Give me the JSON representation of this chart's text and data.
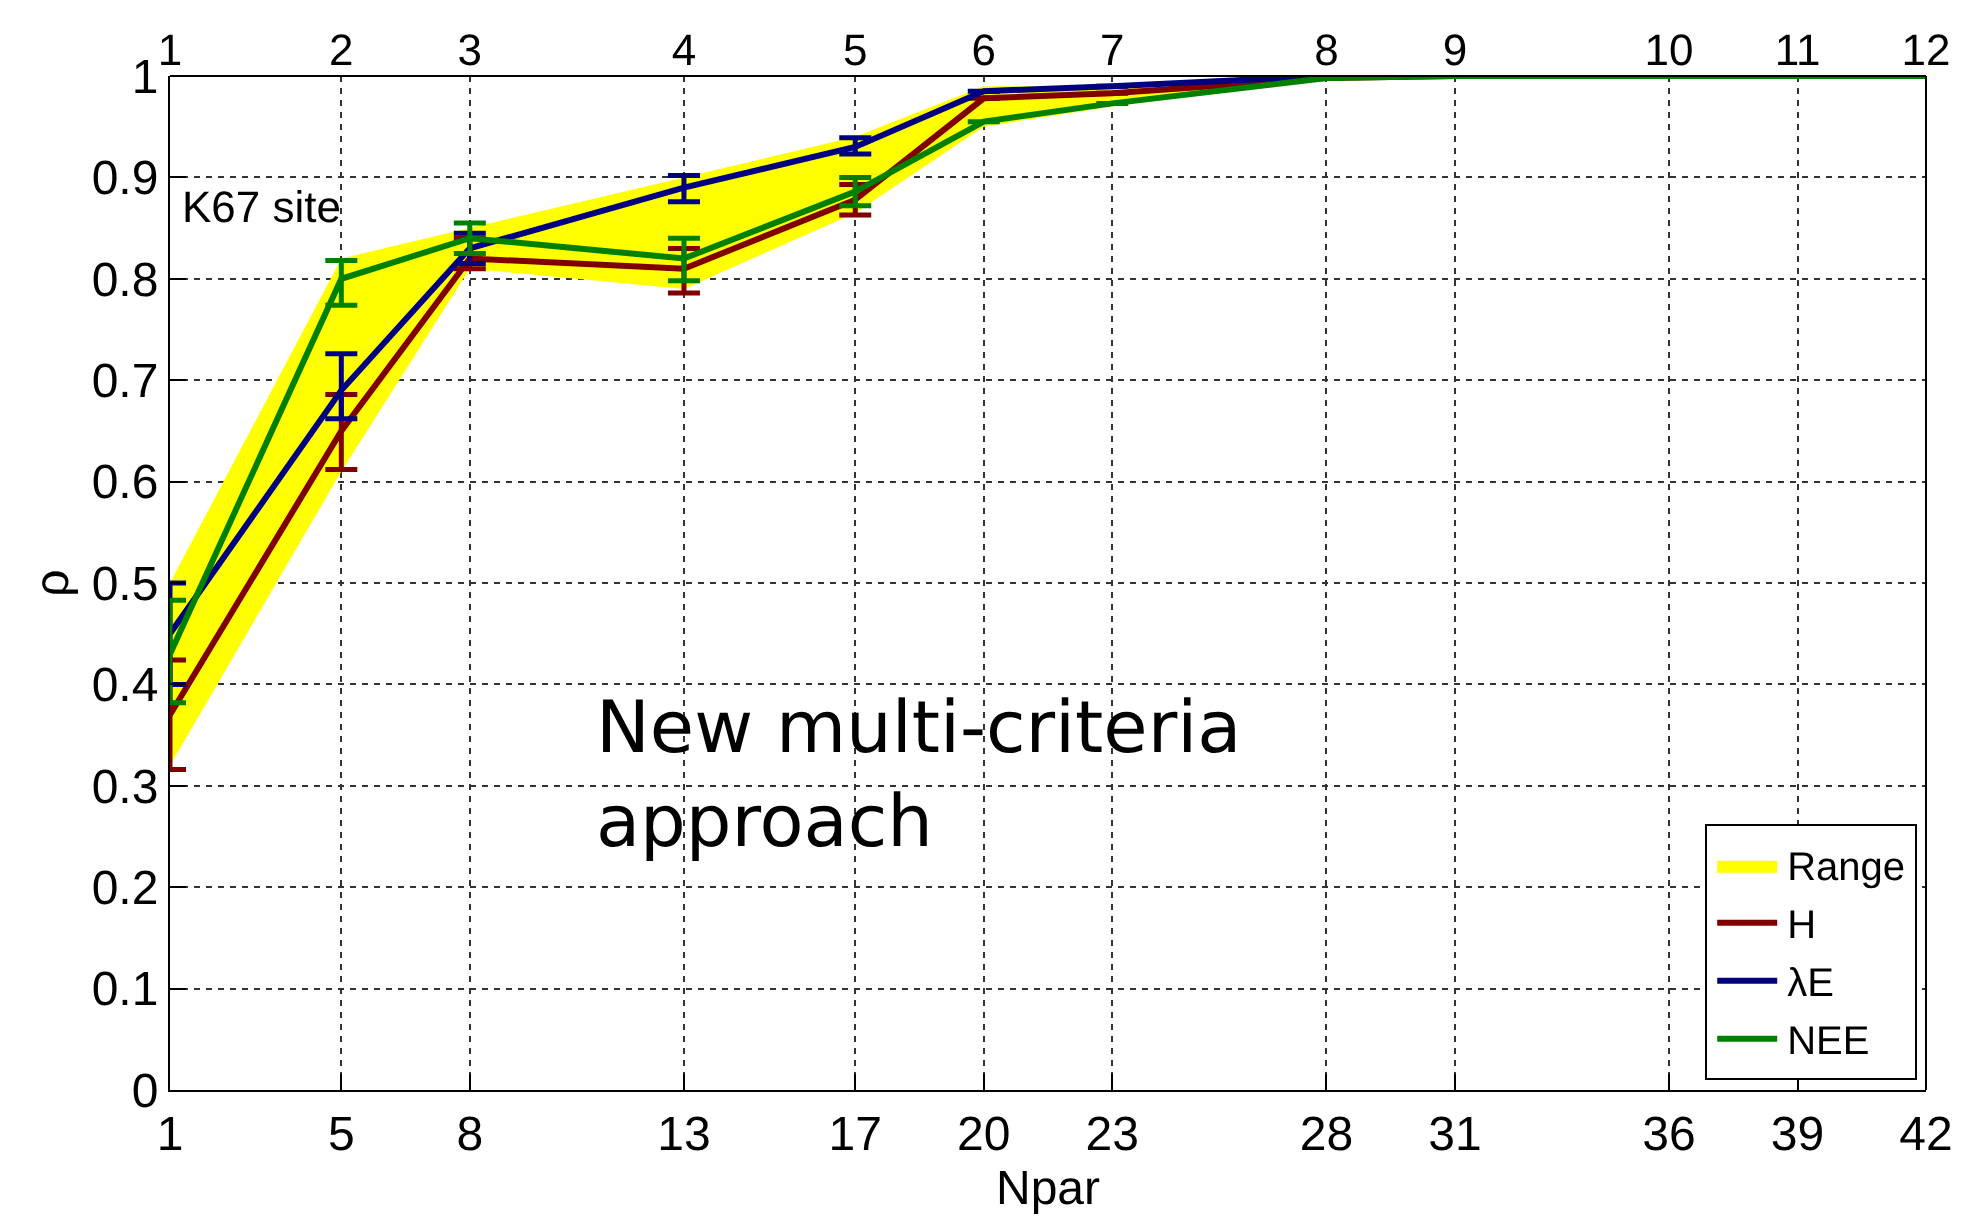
{
  "chart_data": {
    "type": "line",
    "x": [
      1,
      5,
      8,
      13,
      17,
      20,
      23,
      28,
      31,
      36,
      39,
      42
    ],
    "xlabel": "Npar",
    "ylabel": "ρ",
    "xlim": [
      1,
      42
    ],
    "xticks": [
      1,
      5,
      8,
      13,
      17,
      20,
      23,
      28,
      31,
      36,
      39,
      42
    ],
    "ylim": [
      0,
      1
    ],
    "yticks": [
      0,
      0.1,
      0.2,
      0.3,
      0.4,
      0.5,
      0.6,
      0.7,
      0.8,
      0.9,
      1
    ],
    "series": [
      {
        "name": "Range",
        "type": "area",
        "color": "#ffff00",
        "values": [
          null,
          null,
          null,
          null,
          null,
          null,
          null,
          null,
          null,
          null,
          null,
          null
        ],
        "upper": [
          0.5,
          0.82,
          0.85,
          0.9,
          0.94,
          0.99,
          0.99,
          1,
          1,
          1,
          1,
          1
        ],
        "lower": [
          0.32,
          0.61,
          0.81,
          0.79,
          0.865,
          0.95,
          0.97,
          0.998,
          1,
          1,
          1,
          1
        ]
      },
      {
        "name": "H",
        "color": "#800000",
        "values": [
          0.37,
          0.65,
          0.82,
          0.81,
          0.878,
          0.978,
          0.983,
          0.998,
          1,
          null,
          null,
          null
        ],
        "errors": [
          [
            0.316,
            0.424
          ],
          [
            0.612,
            0.686
          ],
          [
            0.81,
            0.84
          ],
          [
            0.786,
            0.83
          ],
          [
            0.863,
            0.893
          ],
          null,
          null,
          null,
          null,
          null,
          null,
          null
        ]
      },
      {
        "name": "λE",
        "color": "#000080",
        "values": [
          0.45,
          0.69,
          0.83,
          0.89,
          0.93,
          0.985,
          0.99,
          1,
          1,
          null,
          null,
          null
        ],
        "errors": [
          [
            0.4,
            0.5
          ],
          [
            0.662,
            0.726
          ],
          [
            0.815,
            0.845
          ],
          [
            0.876,
            0.902
          ],
          [
            0.923,
            0.939
          ],
          null,
          null,
          null,
          null,
          null,
          null,
          null
        ]
      },
      {
        "name": "NEE",
        "color": "#008000",
        "values": [
          0.43,
          0.8,
          0.84,
          0.82,
          0.886,
          0.955,
          0.973,
          0.998,
          1,
          1,
          1,
          1
        ],
        "errors": [
          [
            0.382,
            0.483
          ],
          [
            0.774,
            0.818
          ],
          [
            0.825,
            0.855
          ],
          [
            0.798,
            0.84
          ],
          [
            0.872,
            0.9
          ],
          null,
          null,
          null,
          null,
          null,
          null,
          null
        ]
      }
    ],
    "annotations": [
      "K67 site",
      "New multi-criteria approach",
      "1",
      "2",
      "3",
      "4",
      "5",
      "6",
      "7",
      "8",
      "9",
      "10",
      "11",
      "12"
    ],
    "grid": true,
    "legend": "bottom right",
    "marker": "none",
    "line_style": "solid"
  }
}
